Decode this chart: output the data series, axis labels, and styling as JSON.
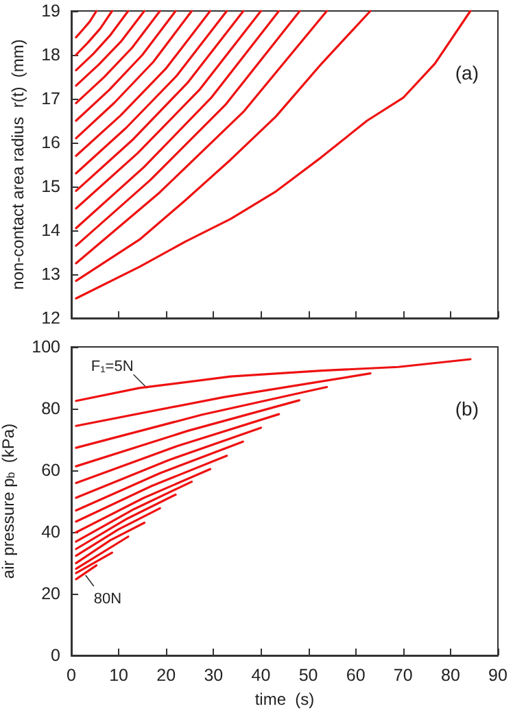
{
  "chart_data": [
    {
      "type": "line",
      "ylabel": "non-contact area radius  r(t)  (mm)",
      "xlim": [
        0,
        90
      ],
      "xticks": [
        0,
        10,
        20,
        30,
        40,
        50,
        60,
        70,
        80,
        90
      ],
      "ylim": [
        12,
        19
      ],
      "yticks": [
        12,
        13,
        14,
        15,
        16,
        17,
        18,
        19
      ],
      "tick_labels": "y",
      "annotations": [
        "(a)"
      ],
      "series": [
        {
          "color": "#ee1111",
          "x": [
            1,
            2.4,
            3.9,
            5.3
          ],
          "values": [
            18.4,
            18.57,
            18.76,
            19
          ]
        },
        {
          "color": "#ee1111",
          "x": [
            1,
            3.5,
            6.1,
            8.6
          ],
          "values": [
            18.0,
            18.28,
            18.6,
            19
          ]
        },
        {
          "color": "#ee1111",
          "x": [
            1,
            4.7,
            8.3,
            12
          ],
          "values": [
            17.65,
            18.03,
            18.46,
            19
          ]
        },
        {
          "color": "#ee1111",
          "x": [
            1,
            5.8,
            10.6,
            15.4
          ],
          "values": [
            17.3,
            17.78,
            18.32,
            19
          ]
        },
        {
          "color": "#ee1111",
          "x": [
            1,
            6.9,
            12.8,
            18.7
          ],
          "values": [
            16.9,
            17.49,
            18.16,
            19
          ]
        },
        {
          "color": "#ee1111",
          "x": [
            1,
            8,
            15,
            22
          ],
          "values": [
            16.5,
            17.2,
            18,
            19
          ]
        },
        {
          "color": "#ee1111",
          "x": [
            1,
            9.1,
            17.3,
            25.4
          ],
          "values": [
            16.1,
            16.91,
            17.84,
            19
          ]
        },
        {
          "color": "#ee1111",
          "x": [
            1,
            10.4,
            19.9,
            29.3
          ],
          "values": [
            15.7,
            16.62,
            17.68,
            19
          ]
        },
        {
          "color": "#ee1111",
          "x": [
            1,
            11.6,
            22.2,
            32.8
          ],
          "values": [
            15.3,
            16.34,
            17.52,
            19
          ]
        },
        {
          "color": "#ee1111",
          "x": [
            1,
            12.8,
            24.5,
            36.3
          ],
          "values": [
            14.9,
            16.05,
            17.36,
            19
          ]
        },
        {
          "color": "#ee1111",
          "x": [
            1,
            14,
            27,
            40
          ],
          "values": [
            14.5,
            15.76,
            17.2,
            19
          ]
        },
        {
          "color": "#ee1111",
          "x": [
            1,
            15.3,
            29.5,
            43.8
          ],
          "values": [
            14.05,
            15.44,
            17.02,
            19
          ]
        },
        {
          "color": "#ee1111",
          "x": [
            1,
            16.7,
            32.5,
            48.2
          ],
          "values": [
            13.65,
            15.15,
            16.86,
            19
          ]
        },
        {
          "color": "#ee1111",
          "x": [
            1,
            18.6,
            36.3,
            53.9
          ],
          "values": [
            13.25,
            14.86,
            16.7,
            19
          ]
        },
        {
          "color": "#ee1111",
          "x": [
            1,
            14.4,
            24,
            33.6,
            43.2,
            52.8,
            63.1
          ],
          "values": [
            12.85,
            13.79,
            14.68,
            15.61,
            16.6,
            17.8,
            19
          ]
        },
        {
          "color": "#ee1111",
          "x": [
            1,
            14.4,
            24,
            33.6,
            43.2,
            52.8,
            62.4,
            70,
            76.7,
            84.2
          ],
          "values": [
            12.45,
            13.17,
            13.74,
            14.26,
            14.89,
            15.67,
            16.5,
            17.02,
            17.8,
            19
          ]
        }
      ]
    },
    {
      "type": "line",
      "xlabel": "time  (s)",
      "ylabel": "air pressure p$_{b}$  (kPa)",
      "xlim": [
        0,
        90
      ],
      "xticks": [
        0,
        10,
        20,
        30,
        40,
        50,
        60,
        70,
        80,
        90
      ],
      "ylim": [
        0,
        100
      ],
      "yticks": [
        0,
        20,
        40,
        60,
        80,
        100
      ],
      "annotations": [
        "(b)",
        {
          "text": "F₁=5N",
          "x": 16,
          "y": 86.6
        },
        {
          "text": "80N",
          "x": 3,
          "y": 26
        }
      ],
      "series": [
        {
          "color": "#ee1111",
          "x": [
            1,
            14.4,
            33.6,
            52.8,
            69,
            84.2
          ],
          "values": [
            82.5,
            86.7,
            90.4,
            92.3,
            93.5,
            96
          ]
        },
        {
          "color": "#ee1111",
          "x": [
            1,
            32.1,
            63.1
          ],
          "values": [
            74.4,
            83.7,
            91.4
          ]
        },
        {
          "color": "#ee1111",
          "x": [
            1,
            27.5,
            53.9
          ],
          "values": [
            67.3,
            78.0,
            87
          ]
        },
        {
          "color": "#ee1111",
          "x": [
            1,
            24.6,
            48.1
          ],
          "values": [
            61.3,
            72.8,
            82.7
          ]
        },
        {
          "color": "#ee1111",
          "x": [
            1,
            22.4,
            43.8
          ],
          "values": [
            55.9,
            67.9,
            78.2
          ]
        },
        {
          "color": "#ee1111",
          "x": [
            1,
            20.5,
            40
          ],
          "values": [
            51.1,
            63.3,
            73.8
          ]
        },
        {
          "color": "#ee1111",
          "x": [
            1,
            18.6,
            36.2
          ],
          "values": [
            47,
            59.0,
            69.3
          ]
        },
        {
          "color": "#ee1111",
          "x": [
            1,
            16.9,
            32.8
          ],
          "values": [
            43.4,
            54.9,
            64.7
          ]
        },
        {
          "color": "#ee1111",
          "x": [
            1,
            15.2,
            29.3
          ],
          "values": [
            39.9,
            51.0,
            60.4
          ]
        },
        {
          "color": "#ee1111",
          "x": [
            1,
            13.2,
            25.4
          ],
          "values": [
            36.9,
            47.4,
            56.3
          ]
        },
        {
          "color": "#ee1111",
          "x": [
            1,
            11.5,
            22
          ],
          "values": [
            34.5,
            44.1,
            52.1
          ]
        },
        {
          "color": "#ee1111",
          "x": [
            1,
            9.9,
            18.7
          ],
          "values": [
            32.3,
            40.8,
            47.7
          ]
        },
        {
          "color": "#ee1111",
          "x": [
            1,
            8.2,
            15.4
          ],
          "values": [
            29.9,
            37.3,
            43
          ]
        },
        {
          "color": "#ee1111",
          "x": [
            1,
            12
          ],
          "values": [
            28.1,
            38.5
          ]
        },
        {
          "color": "#ee1111",
          "x": [
            1,
            8.6
          ],
          "values": [
            26.7,
            33.3
          ]
        },
        {
          "color": "#ee1111",
          "x": [
            1,
            5.3
          ],
          "values": [
            24.7,
            29.2
          ]
        }
      ]
    }
  ]
}
